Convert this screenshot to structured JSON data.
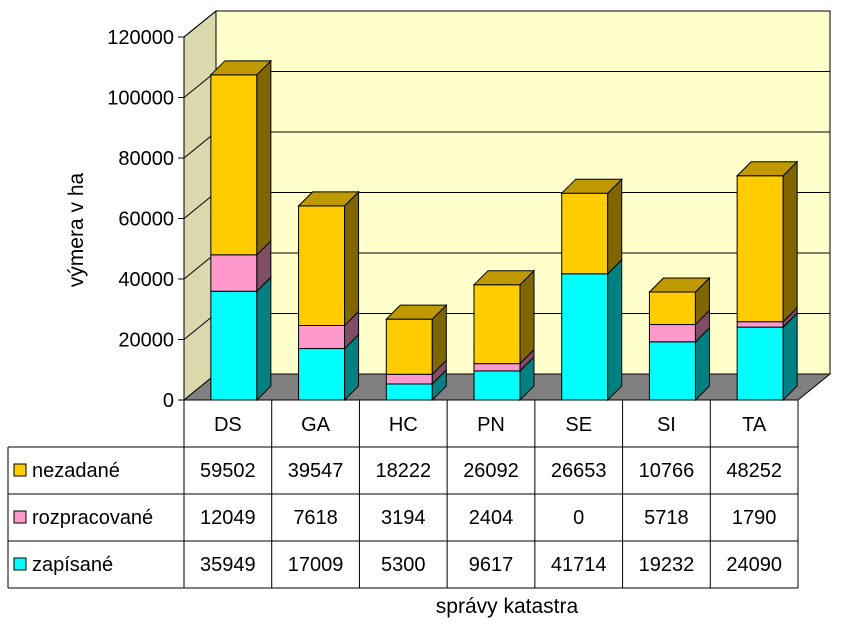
{
  "chart_data": {
    "type": "bar",
    "stacked": true,
    "three_d": true,
    "categories": [
      "DS",
      "GA",
      "HC",
      "PN",
      "SE",
      "SI",
      "TA"
    ],
    "series": [
      {
        "name": "nezadané",
        "color": "#ffcc00",
        "values": [
          59502,
          39547,
          18222,
          26092,
          26653,
          10766,
          48252
        ]
      },
      {
        "name": "rozpracované",
        "color": "#ff99cc",
        "values": [
          12049,
          7618,
          3194,
          2404,
          0,
          5718,
          1790
        ]
      },
      {
        "name": "zapísané",
        "color": "#00ffff",
        "values": [
          35949,
          17009,
          5300,
          9617,
          41714,
          19232,
          24090
        ]
      }
    ],
    "ylabel": "výmera v ha",
    "xlabel": "správy katastra",
    "ylim": [
      0,
      120000
    ],
    "yticks": [
      "0",
      "20000",
      "40000",
      "60000",
      "80000",
      "100000",
      "120000"
    ],
    "grid": true,
    "legend": "table-left",
    "wall_color": "#ffffcc",
    "floor_color": "#808080",
    "data_table": true
  }
}
